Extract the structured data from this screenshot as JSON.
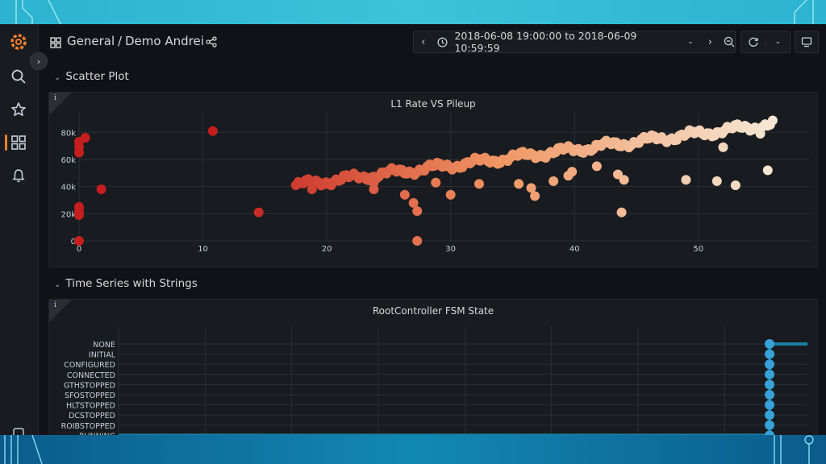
{
  "breadcrumb": {
    "folder": "General",
    "separator": "/",
    "dashboard": "Demo Andrei"
  },
  "toolbar": {
    "time_range": "2018-06-08 19:00:00 to 2018-06-09 10:59:59"
  },
  "rows": [
    {
      "title": "Scatter Plot"
    },
    {
      "title": "Time Series with Strings"
    }
  ],
  "panels": {
    "scatter": {
      "title": "L1 Rate VS Pileup",
      "info": "i"
    },
    "fsm": {
      "title": "RootController FSM State",
      "info": "i"
    }
  },
  "chart_data": [
    {
      "type": "scatter",
      "title": "L1 Rate VS Pileup",
      "xlabel": "",
      "ylabel": "",
      "xlim": [
        0,
        59
      ],
      "ylim": [
        0,
        95000
      ],
      "x_ticks": [
        0,
        10,
        20,
        30,
        40,
        50
      ],
      "y_ticks": [
        0,
        20000,
        40000,
        60000,
        80000
      ],
      "y_tick_labels": [
        "0",
        "20k",
        "40k",
        "60k",
        "80k"
      ],
      "grid": true,
      "color_scale": [
        "#c41e1e",
        "#f5e6d3"
      ],
      "trend": {
        "x": [
          17.5,
          56
        ],
        "y": [
          41000,
          86000
        ]
      },
      "points": [
        [
          0,
          0
        ],
        [
          0,
          19000
        ],
        [
          0,
          22000
        ],
        [
          0,
          25000
        ],
        [
          0,
          65000
        ],
        [
          0,
          69000
        ],
        [
          0,
          73000
        ],
        [
          0.5,
          76000
        ],
        [
          1.8,
          38000
        ],
        [
          10.8,
          81000
        ],
        [
          14.5,
          21000
        ],
        [
          18.8,
          38000
        ],
        [
          23.8,
          38000
        ],
        [
          23.8,
          43000
        ],
        [
          26.3,
          34000
        ],
        [
          27,
          28000
        ],
        [
          27.3,
          22000
        ],
        [
          27.3,
          0
        ],
        [
          28.8,
          43000
        ],
        [
          30,
          34000
        ],
        [
          32.3,
          42000
        ],
        [
          35.5,
          42000
        ],
        [
          36.5,
          39000
        ],
        [
          36.8,
          33000
        ],
        [
          38.3,
          44000
        ],
        [
          39.5,
          48000
        ],
        [
          39.8,
          51000
        ],
        [
          41.8,
          55000
        ],
        [
          43.5,
          49000
        ],
        [
          43.8,
          21000
        ],
        [
          44,
          45000
        ],
        [
          49,
          45000
        ],
        [
          51.5,
          44000
        ],
        [
          53,
          41000
        ],
        [
          52,
          69000
        ],
        [
          55,
          79000
        ],
        [
          55.6,
          52000
        ]
      ]
    },
    {
      "type": "line",
      "title": "RootController FSM State",
      "categories": [
        "NONE",
        "INITIAL",
        "CONFIGURED",
        "CONNECTED",
        "GTHSTOPPED",
        "SFOSTOPPED",
        "HLTSTOPPED",
        "DCSTOPPED",
        "ROIBSTOPPED",
        "RUNNING"
      ],
      "xlim": [
        0,
        100
      ],
      "transition_x": 94.5,
      "segments": [
        {
          "state": "RUNNING",
          "x": [
            0,
            94.5
          ]
        },
        {
          "state": "NONE",
          "x": [
            94.5,
            100
          ]
        }
      ],
      "grid": true
    }
  ],
  "colors": {
    "accent": "#f5802a",
    "series": "#1a7fa3",
    "points": "#37a2d9"
  },
  "icons": {
    "logo": "grafana-logo",
    "search": "search-icon",
    "starred": "star-icon",
    "dashboards": "dashboards-icon",
    "alerts": "bell-icon"
  }
}
